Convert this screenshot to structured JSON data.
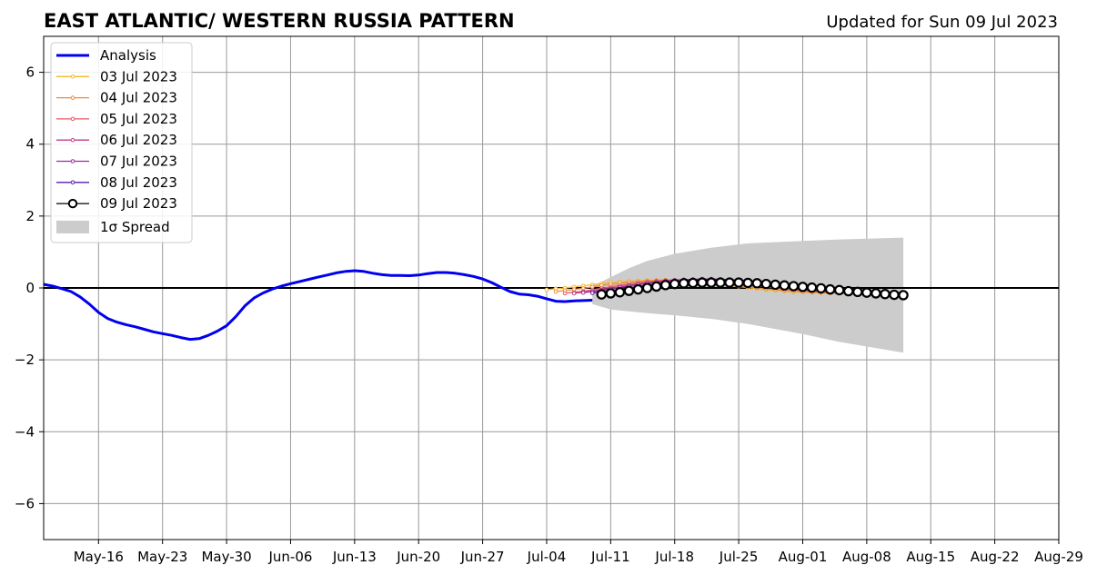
{
  "chart_data": {
    "type": "line",
    "title": "EAST ATLANTIC/ WESTERN RUSSIA PATTERN",
    "subtitle": "Updated for Sun 09 Jul 2023",
    "xlabel": "",
    "ylabel": "",
    "xlim": [
      "2023-05-10",
      "2023-08-29"
    ],
    "ylim": [
      -7,
      7
    ],
    "grid": true,
    "legend_position": "top-left",
    "x_ticks": [
      {
        "date": "2023-05-16",
        "label": "May-16"
      },
      {
        "date": "2023-05-23",
        "label": "May-23"
      },
      {
        "date": "2023-05-30",
        "label": "May-30"
      },
      {
        "date": "2023-06-06",
        "label": "Jun-06"
      },
      {
        "date": "2023-06-13",
        "label": "Jun-13"
      },
      {
        "date": "2023-06-20",
        "label": "Jun-20"
      },
      {
        "date": "2023-06-27",
        "label": "Jun-27"
      },
      {
        "date": "2023-07-04",
        "label": "Jul-04"
      },
      {
        "date": "2023-07-11",
        "label": "Jul-11"
      },
      {
        "date": "2023-07-18",
        "label": "Jul-18"
      },
      {
        "date": "2023-07-25",
        "label": "Jul-25"
      },
      {
        "date": "2023-08-01",
        "label": "Aug-01"
      },
      {
        "date": "2023-08-08",
        "label": "Aug-08"
      },
      {
        "date": "2023-08-15",
        "label": "Aug-15"
      },
      {
        "date": "2023-08-22",
        "label": "Aug-22"
      },
      {
        "date": "2023-08-29",
        "label": "Aug-29"
      }
    ],
    "y_ticks": [
      {
        "value": 6,
        "label": "6"
      },
      {
        "value": 4,
        "label": "4"
      },
      {
        "value": 2,
        "label": "2"
      },
      {
        "value": 0,
        "label": "0"
      },
      {
        "value": -2,
        "label": "−2"
      },
      {
        "value": -4,
        "label": "−4"
      },
      {
        "value": -6,
        "label": "−6"
      }
    ],
    "analysis": {
      "name": "Analysis",
      "color": "#0000ee",
      "points": [
        [
          "2023-05-10",
          0.1
        ],
        [
          "2023-05-11",
          0.05
        ],
        [
          "2023-05-12",
          -0.02
        ],
        [
          "2023-05-13",
          -0.1
        ],
        [
          "2023-05-14",
          -0.25
        ],
        [
          "2023-05-15",
          -0.45
        ],
        [
          "2023-05-16",
          -0.68
        ],
        [
          "2023-05-17",
          -0.85
        ],
        [
          "2023-05-18",
          -0.95
        ],
        [
          "2023-05-19",
          -1.02
        ],
        [
          "2023-05-20",
          -1.08
        ],
        [
          "2023-05-21",
          -1.15
        ],
        [
          "2023-05-22",
          -1.22
        ],
        [
          "2023-05-23",
          -1.27
        ],
        [
          "2023-05-24",
          -1.32
        ],
        [
          "2023-05-25",
          -1.38
        ],
        [
          "2023-05-26",
          -1.43
        ],
        [
          "2023-05-27",
          -1.41
        ],
        [
          "2023-05-28",
          -1.32
        ],
        [
          "2023-05-29",
          -1.2
        ],
        [
          "2023-05-30",
          -1.05
        ],
        [
          "2023-05-31",
          -0.8
        ],
        [
          "2023-06-01",
          -0.5
        ],
        [
          "2023-06-02",
          -0.28
        ],
        [
          "2023-06-03",
          -0.14
        ],
        [
          "2023-06-04",
          -0.03
        ],
        [
          "2023-06-05",
          0.05
        ],
        [
          "2023-06-06",
          0.12
        ],
        [
          "2023-06-07",
          0.18
        ],
        [
          "2023-06-08",
          0.24
        ],
        [
          "2023-06-09",
          0.3
        ],
        [
          "2023-06-10",
          0.36
        ],
        [
          "2023-06-11",
          0.42
        ],
        [
          "2023-06-12",
          0.46
        ],
        [
          "2023-06-13",
          0.48
        ],
        [
          "2023-06-14",
          0.46
        ],
        [
          "2023-06-15",
          0.41
        ],
        [
          "2023-06-16",
          0.37
        ],
        [
          "2023-06-17",
          0.35
        ],
        [
          "2023-06-18",
          0.35
        ],
        [
          "2023-06-19",
          0.34
        ],
        [
          "2023-06-20",
          0.36
        ],
        [
          "2023-06-21",
          0.4
        ],
        [
          "2023-06-22",
          0.43
        ],
        [
          "2023-06-23",
          0.43
        ],
        [
          "2023-06-24",
          0.41
        ],
        [
          "2023-06-25",
          0.37
        ],
        [
          "2023-06-26",
          0.32
        ],
        [
          "2023-06-27",
          0.25
        ],
        [
          "2023-06-28",
          0.15
        ],
        [
          "2023-06-29",
          0.02
        ],
        [
          "2023-06-30",
          -0.1
        ],
        [
          "2023-07-01",
          -0.17
        ],
        [
          "2023-07-02",
          -0.19
        ],
        [
          "2023-07-03",
          -0.23
        ],
        [
          "2023-07-04",
          -0.3
        ],
        [
          "2023-07-05",
          -0.37
        ],
        [
          "2023-07-06",
          -0.38
        ],
        [
          "2023-07-07",
          -0.36
        ],
        [
          "2023-07-08",
          -0.35
        ],
        [
          "2023-07-09",
          -0.34
        ]
      ]
    },
    "forecasts": [
      {
        "name": "03 Jul 2023",
        "color": "#f5b731",
        "start": "2023-07-04",
        "values": [
          -0.05,
          -0.02,
          0.0,
          0.03,
          0.06,
          0.09,
          0.12,
          0.15,
          0.17,
          0.19,
          0.2,
          0.21,
          0.22,
          0.22,
          0.21,
          0.2,
          0.18,
          0.16,
          0.13,
          0.1,
          0.07,
          0.04,
          0.01,
          -0.02,
          -0.05,
          -0.07,
          -0.09,
          -0.11,
          -0.12,
          -0.13,
          -0.14,
          -0.15,
          -0.15,
          -0.16,
          -0.16,
          -0.17,
          -0.17,
          -0.18,
          -0.18,
          -0.19
        ]
      },
      {
        "name": "04 Jul 2023",
        "color": "#ef8c3b",
        "start": "2023-07-05",
        "values": [
          -0.1,
          -0.07,
          -0.04,
          -0.01,
          0.03,
          0.07,
          0.1,
          0.13,
          0.16,
          0.18,
          0.2,
          0.21,
          0.22,
          0.22,
          0.21,
          0.2,
          0.18,
          0.15,
          0.12,
          0.09,
          0.06,
          0.03,
          0.0,
          -0.03,
          -0.05,
          -0.07,
          -0.09,
          -0.11,
          -0.12,
          -0.13,
          -0.14,
          -0.15,
          -0.15,
          -0.16,
          -0.17,
          -0.17,
          -0.18,
          -0.18
        ]
      },
      {
        "name": "05 Jul 2023",
        "color": "#e55865",
        "start": "2023-07-06",
        "values": [
          -0.15,
          -0.12,
          -0.09,
          -0.05,
          -0.01,
          0.03,
          0.07,
          0.11,
          0.14,
          0.17,
          0.19,
          0.21,
          0.22,
          0.23,
          0.23,
          0.22,
          0.2,
          0.18,
          0.15,
          0.12,
          0.09,
          0.06,
          0.03,
          0.0,
          -0.03,
          -0.05,
          -0.07,
          -0.09,
          -0.11,
          -0.12,
          -0.13,
          -0.14,
          -0.15,
          -0.16,
          -0.17,
          -0.17,
          -0.18
        ]
      },
      {
        "name": "06 Jul 2023",
        "color": "#c33d8a",
        "start": "2023-07-07",
        "values": [
          -0.15,
          -0.12,
          -0.09,
          -0.05,
          -0.01,
          0.03,
          0.07,
          0.11,
          0.14,
          0.17,
          0.2,
          0.22,
          0.23,
          0.24,
          0.24,
          0.23,
          0.21,
          0.19,
          0.16,
          0.13,
          0.1,
          0.07,
          0.04,
          0.01,
          -0.02,
          -0.05,
          -0.07,
          -0.09,
          -0.11,
          -0.12,
          -0.14,
          -0.15,
          -0.16,
          -0.17,
          -0.18,
          -0.19
        ]
      },
      {
        "name": "07 Jul 2023",
        "color": "#9c2aa0",
        "start": "2023-07-08",
        "values": [
          -0.13,
          -0.1,
          -0.07,
          -0.03,
          0.01,
          0.05,
          0.09,
          0.13,
          0.16,
          0.19,
          0.21,
          0.23,
          0.24,
          0.25,
          0.25,
          0.24,
          0.22,
          0.19,
          0.16,
          0.13,
          0.1,
          0.07,
          0.04,
          0.01,
          -0.02,
          -0.05,
          -0.07,
          -0.09,
          -0.11,
          -0.13,
          -0.14,
          -0.16,
          -0.17,
          -0.18,
          -0.19
        ]
      },
      {
        "name": "08 Jul 2023",
        "color": "#5b1aa8",
        "start": "2023-07-09",
        "values": [
          -0.14,
          -0.11,
          -0.08,
          -0.04,
          0.0,
          0.04,
          0.08,
          0.12,
          0.15,
          0.18,
          0.2,
          0.22,
          0.23,
          0.24,
          0.24,
          0.23,
          0.21,
          0.18,
          0.15,
          0.12,
          0.09,
          0.06,
          0.03,
          0.0,
          -0.03,
          -0.05,
          -0.08,
          -0.1,
          -0.12,
          -0.13,
          -0.15,
          -0.16,
          -0.17,
          -0.18
        ]
      },
      {
        "name": "09 Jul 2023",
        "color": "#000000",
        "start": "2023-07-10",
        "values": [
          -0.18,
          -0.15,
          -0.12,
          -0.08,
          -0.04,
          0.0,
          0.04,
          0.08,
          0.11,
          0.13,
          0.14,
          0.15,
          0.15,
          0.15,
          0.15,
          0.15,
          0.14,
          0.13,
          0.11,
          0.09,
          0.07,
          0.05,
          0.03,
          0.01,
          -0.01,
          -0.04,
          -0.06,
          -0.09,
          -0.11,
          -0.13,
          -0.15,
          -0.17,
          -0.19,
          -0.2
        ]
      }
    ],
    "spread": {
      "name": "1σ Spread",
      "color": "#cccccc",
      "x": [
        "2023-07-09",
        "2023-07-11",
        "2023-07-13",
        "2023-07-15",
        "2023-07-18",
        "2023-07-22",
        "2023-07-26",
        "2023-08-01",
        "2023-08-05",
        "2023-08-12"
      ],
      "upper": [
        0.05,
        0.3,
        0.55,
        0.75,
        0.95,
        1.12,
        1.24,
        1.31,
        1.35,
        1.4
      ],
      "lower": [
        -0.45,
        -0.6,
        -0.65,
        -0.7,
        -0.76,
        -0.86,
        -1.0,
        -1.28,
        -1.5,
        -1.8
      ]
    }
  }
}
